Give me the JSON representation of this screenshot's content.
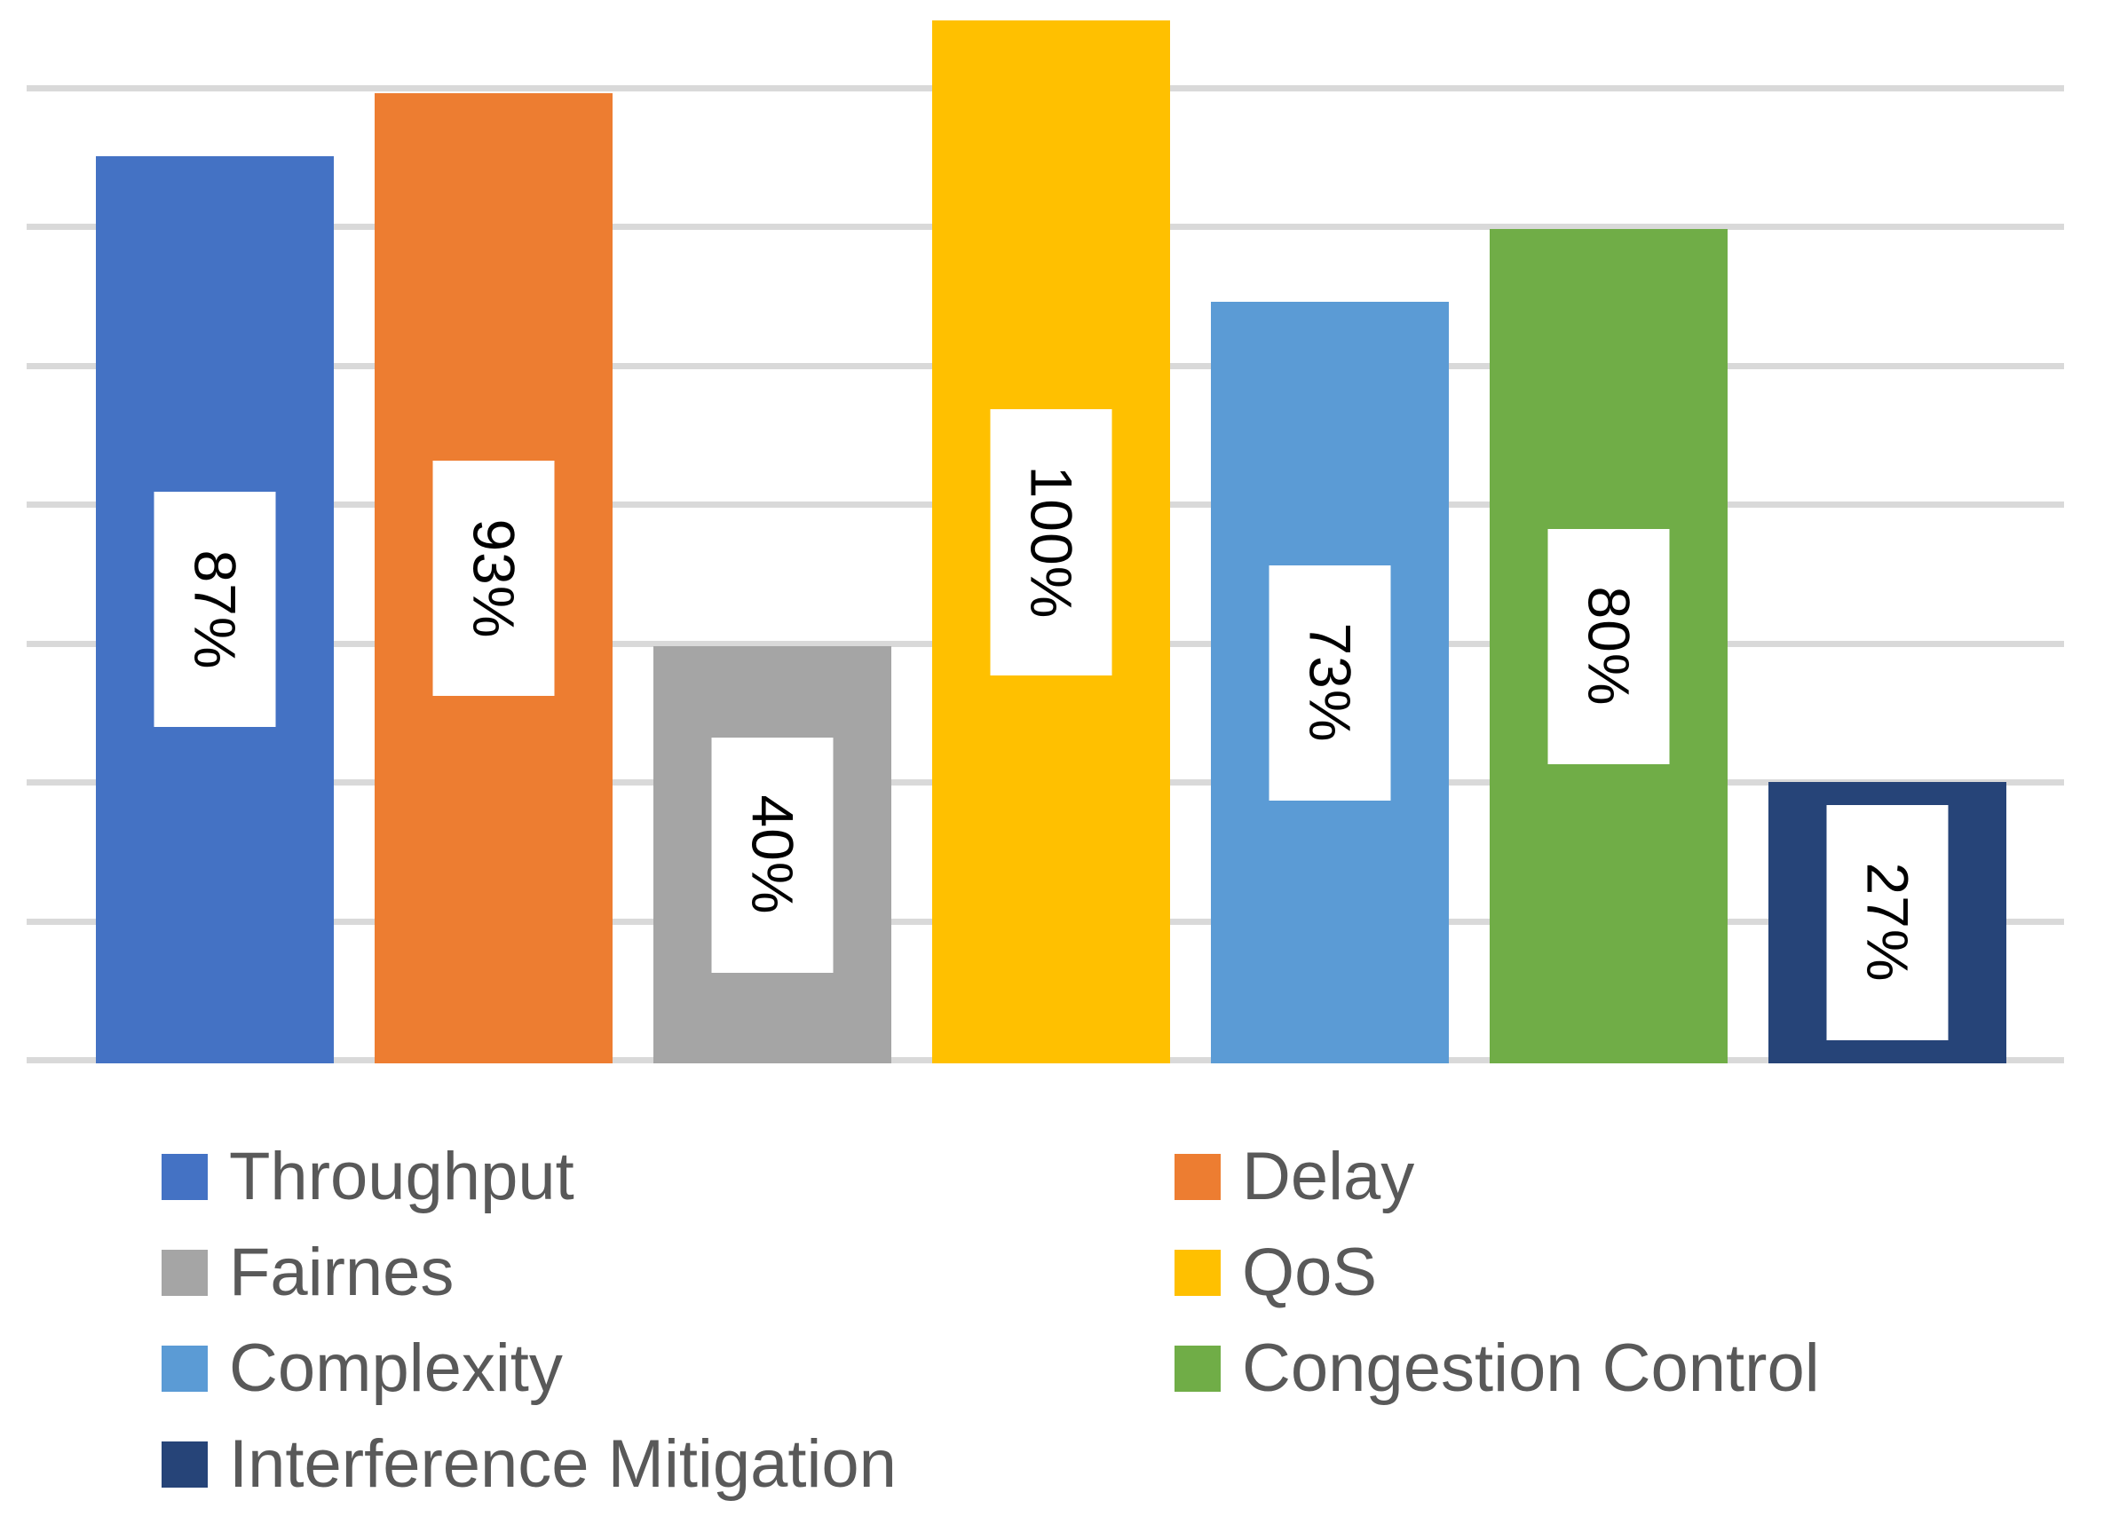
{
  "chart_data": {
    "type": "bar",
    "title": "",
    "xlabel": "",
    "ylabel": "",
    "categories": [
      "Throughput",
      "Delay",
      "Fairnes",
      "QoS",
      "Complexity",
      "Congestion Control",
      "Interference Mitigation"
    ],
    "series": [
      {
        "name": "Throughput",
        "value": 87,
        "label": "87%",
        "color": "#4472C4"
      },
      {
        "name": "Delay",
        "value": 93,
        "label": "93%",
        "color": "#ED7D31"
      },
      {
        "name": "Fairnes",
        "value": 40,
        "label": "40%",
        "color": "#A5A5A5"
      },
      {
        "name": "QoS",
        "value": 100,
        "label": "100%",
        "color": "#FFC000"
      },
      {
        "name": "Complexity",
        "value": 73,
        "label": "73%",
        "color": "#5B9BD5"
      },
      {
        "name": "Congestion Control",
        "value": 80,
        "label": "80%",
        "color": "#70AD47"
      },
      {
        "name": "Interference Mitigation",
        "value": 27,
        "label": "27%",
        "color": "#264478"
      }
    ],
    "ylim": [
      0,
      106
    ],
    "grid": true,
    "gridline_count": 8,
    "grid_color": "#D9D9D9",
    "data_labels": {
      "rotation_deg": 90,
      "text_color": "#000000",
      "background": "#FFFFFF"
    },
    "legend_position": "bottom",
    "legend": {
      "text_color": "#595959",
      "columns": [
        {
          "items": [
            "Throughput",
            "Fairnes",
            "Complexity",
            "Interference Mitigation"
          ]
        },
        {
          "items": [
            "Delay",
            "QoS",
            "Congestion Control"
          ]
        }
      ]
    }
  }
}
